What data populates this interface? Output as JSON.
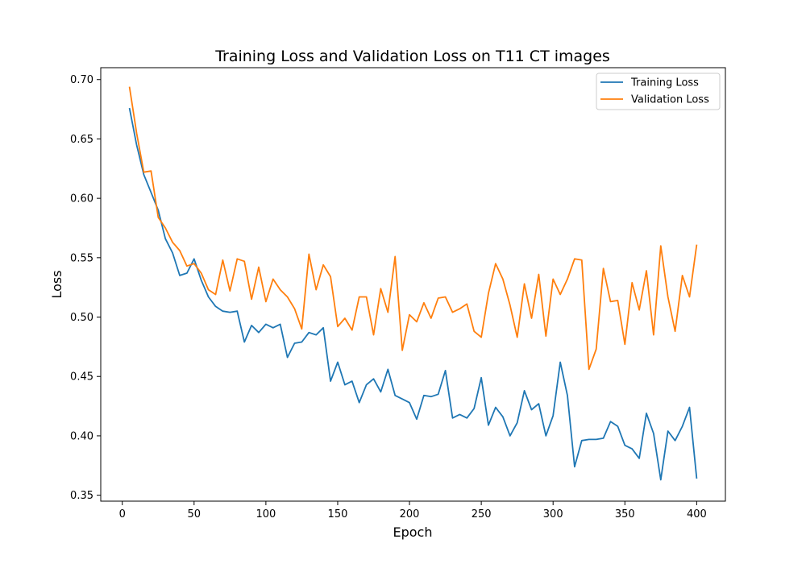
{
  "chart_data": {
    "type": "line",
    "title": "Training Loss and Validation Loss on T11 CT images",
    "xlabel": "Epoch",
    "ylabel": "Loss",
    "xlim": [
      -15,
      420
    ],
    "ylim": [
      0.345,
      0.71
    ],
    "xticks": [
      0,
      50,
      100,
      150,
      200,
      250,
      300,
      350,
      400
    ],
    "yticks": [
      0.35,
      0.4,
      0.45,
      0.5,
      0.55,
      0.6,
      0.65,
      0.7
    ],
    "ytick_labels": [
      "0.35",
      "0.40",
      "0.45",
      "0.50",
      "0.55",
      "0.60",
      "0.65",
      "0.70"
    ],
    "grid": false,
    "legend_position": "top-right",
    "x": [
      5,
      10,
      15,
      20,
      25,
      30,
      35,
      40,
      45,
      50,
      55,
      60,
      65,
      70,
      75,
      80,
      85,
      90,
      95,
      100,
      105,
      110,
      115,
      120,
      125,
      130,
      135,
      140,
      145,
      150,
      155,
      160,
      165,
      170,
      175,
      180,
      185,
      190,
      195,
      200,
      205,
      210,
      215,
      220,
      225,
      230,
      235,
      240,
      245,
      250,
      255,
      260,
      265,
      270,
      275,
      280,
      285,
      290,
      295,
      300,
      305,
      310,
      315,
      320,
      325,
      330,
      335,
      340,
      345,
      350,
      355,
      360,
      365,
      370,
      375,
      380,
      385,
      390,
      395,
      400
    ],
    "series": [
      {
        "name": "Training Loss",
        "color": "#1f77b4",
        "values": [
          0.676,
          0.645,
          0.62,
          0.605,
          0.59,
          0.566,
          0.554,
          0.535,
          0.537,
          0.549,
          0.531,
          0.517,
          0.509,
          0.505,
          0.504,
          0.505,
          0.479,
          0.493,
          0.487,
          0.494,
          0.491,
          0.494,
          0.466,
          0.478,
          0.479,
          0.487,
          0.485,
          0.491,
          0.446,
          0.462,
          0.443,
          0.446,
          0.428,
          0.443,
          0.448,
          0.437,
          0.456,
          0.434,
          0.431,
          0.428,
          0.414,
          0.434,
          0.433,
          0.435,
          0.455,
          0.415,
          0.418,
          0.415,
          0.423,
          0.449,
          0.409,
          0.424,
          0.416,
          0.4,
          0.411,
          0.438,
          0.422,
          0.427,
          0.4,
          0.417,
          0.462,
          0.434,
          0.374,
          0.396,
          0.397,
          0.397,
          0.398,
          0.412,
          0.408,
          0.392,
          0.389,
          0.381,
          0.419,
          0.402,
          0.363,
          0.404,
          0.396,
          0.408,
          0.424,
          0.364
        ]
      },
      {
        "name": "Validation Loss",
        "color": "#ff7f0e",
        "values": [
          0.694,
          0.655,
          0.622,
          0.623,
          0.584,
          0.575,
          0.563,
          0.556,
          0.543,
          0.545,
          0.537,
          0.523,
          0.519,
          0.548,
          0.522,
          0.549,
          0.547,
          0.515,
          0.542,
          0.513,
          0.532,
          0.523,
          0.517,
          0.507,
          0.49,
          0.553,
          0.523,
          0.544,
          0.534,
          0.492,
          0.499,
          0.489,
          0.517,
          0.517,
          0.485,
          0.524,
          0.504,
          0.551,
          0.472,
          0.502,
          0.496,
          0.512,
          0.499,
          0.516,
          0.517,
          0.504,
          0.507,
          0.511,
          0.488,
          0.483,
          0.52,
          0.545,
          0.532,
          0.51,
          0.483,
          0.528,
          0.499,
          0.536,
          0.484,
          0.532,
          0.519,
          0.532,
          0.549,
          0.548,
          0.456,
          0.473,
          0.541,
          0.513,
          0.514,
          0.477,
          0.529,
          0.506,
          0.539,
          0.485,
          0.56,
          0.517,
          0.488,
          0.535,
          0.517,
          0.561
        ]
      }
    ]
  }
}
